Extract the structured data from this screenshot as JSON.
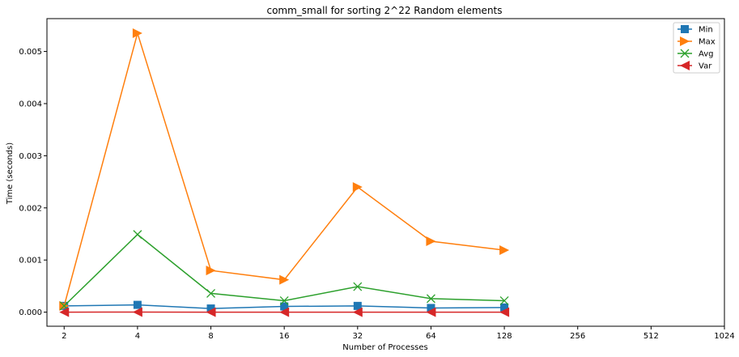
{
  "chart_data": {
    "type": "line",
    "title": "comm_small for sorting 2^22 Random elements",
    "xlabel": "Number of Processes",
    "ylabel": "Time (seconds)",
    "x_scale": "log2",
    "x_ticks": [
      "2",
      "4",
      "8",
      "16",
      "32",
      "64",
      "128",
      "256",
      "512",
      "1024"
    ],
    "x": [
      2,
      4,
      8,
      16,
      32,
      64,
      128
    ],
    "xlim": [
      1.7,
      1024
    ],
    "ylim": [
      -0.00027,
      0.00563
    ],
    "y_ticks": [
      "0.000",
      "0.001",
      "0.002",
      "0.003",
      "0.004",
      "0.005"
    ],
    "grid": false,
    "legend_position": "top-right",
    "series": [
      {
        "name": "Min",
        "color": "#1f77b4",
        "marker": "square",
        "values": [
          0.00012,
          0.00014,
          7e-05,
          0.00011,
          0.00012,
          8e-05,
          9e-05
        ]
      },
      {
        "name": "Max",
        "color": "#ff7f0e",
        "marker": "triangle-right",
        "values": [
          0.00012,
          0.00535,
          0.0008,
          0.00062,
          0.0024,
          0.00136,
          0.00119
        ]
      },
      {
        "name": "Avg",
        "color": "#2ca02c",
        "marker": "x",
        "values": [
          0.00012,
          0.00149,
          0.00036,
          0.00022,
          0.00049,
          0.00026,
          0.00022
        ]
      },
      {
        "name": "Var",
        "color": "#d62728",
        "marker": "triangle-left",
        "values": [
          5e-07,
          1e-06,
          2e-07,
          1e-07,
          2e-07,
          2e-07,
          1e-07
        ]
      }
    ]
  }
}
